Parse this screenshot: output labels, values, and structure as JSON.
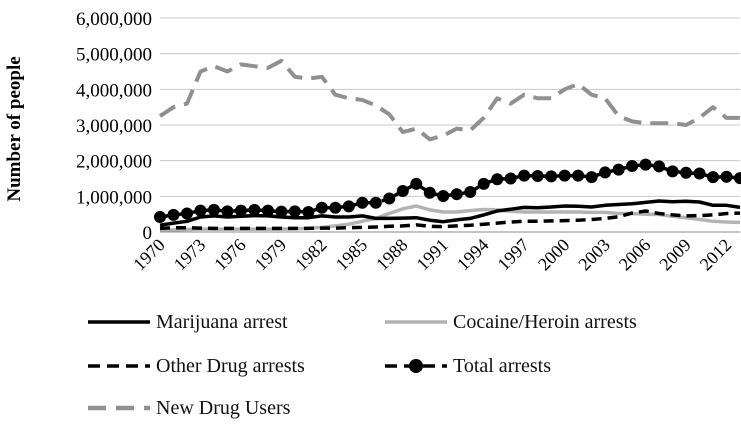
{
  "chart_data": {
    "type": "line",
    "title": "",
    "xlabel": "",
    "ylabel": "Number of people",
    "x": [
      1970,
      1971,
      1972,
      1973,
      1974,
      1975,
      1976,
      1977,
      1978,
      1979,
      1980,
      1981,
      1982,
      1983,
      1984,
      1985,
      1986,
      1987,
      1988,
      1989,
      1990,
      1991,
      1992,
      1993,
      1994,
      1995,
      1996,
      1997,
      1998,
      1999,
      2000,
      2001,
      2002,
      2003,
      2004,
      2005,
      2006,
      2007,
      2008,
      2009,
      2010,
      2011,
      2012,
      2013
    ],
    "x_tick_labels": [
      "1970",
      "1973",
      "1976",
      "1979",
      "1982",
      "1985",
      "1988",
      "1991",
      "1994",
      "1997",
      "2000",
      "2003",
      "2006",
      "2009",
      "2012"
    ],
    "ylim": [
      0,
      6000000
    ],
    "y_tick_labels": [
      "0",
      "1,000,000",
      "2,000,000",
      "3,000,000",
      "4,000,000",
      "5,000,000",
      "6,000,000"
    ],
    "grid": "horizontal",
    "legend_position": "bottom",
    "series": [
      {
        "name": "Marijuana arrest",
        "color": "#000000",
        "style": "solid",
        "values": [
          190000,
          250000,
          300000,
          420000,
          450000,
          420000,
          440000,
          460000,
          450000,
          420000,
          400000,
          400000,
          450000,
          420000,
          420000,
          450000,
          380000,
          380000,
          390000,
          400000,
          330000,
          290000,
          340000,
          380000,
          480000,
          590000,
          640000,
          690000,
          680000,
          700000,
          730000,
          720000,
          700000,
          750000,
          770000,
          790000,
          830000,
          870000,
          850000,
          860000,
          840000,
          750000,
          750000,
          690000
        ]
      },
      {
        "name": "Cocaine/Heroin arrests",
        "color": "#b3b3b3",
        "style": "solid",
        "values": [
          50000,
          60000,
          70000,
          80000,
          80000,
          80000,
          80000,
          80000,
          80000,
          80000,
          90000,
          100000,
          130000,
          170000,
          220000,
          300000,
          380000,
          520000,
          650000,
          730000,
          620000,
          560000,
          560000,
          600000,
          630000,
          620000,
          580000,
          560000,
          560000,
          560000,
          560000,
          560000,
          550000,
          550000,
          520000,
          520000,
          500000,
          490000,
          440000,
          400000,
          350000,
          300000,
          280000,
          270000
        ]
      },
      {
        "name": "Other Drug arrests",
        "color": "#000000",
        "style": "dashed",
        "values": [
          100000,
          120000,
          120000,
          110000,
          100000,
          100000,
          100000,
          100000,
          100000,
          100000,
          100000,
          100000,
          110000,
          110000,
          120000,
          130000,
          140000,
          160000,
          170000,
          200000,
          160000,
          150000,
          170000,
          190000,
          220000,
          250000,
          280000,
          300000,
          300000,
          310000,
          320000,
          330000,
          350000,
          380000,
          430000,
          530000,
          590000,
          520000,
          480000,
          450000,
          460000,
          480000,
          520000,
          530000
        ]
      },
      {
        "name": "Total arrests",
        "color": "#000000",
        "style": "dashed-dot",
        "values": [
          420000,
          480000,
          520000,
          600000,
          620000,
          580000,
          600000,
          620000,
          600000,
          570000,
          580000,
          560000,
          680000,
          680000,
          720000,
          820000,
          820000,
          940000,
          1150000,
          1350000,
          1100000,
          1010000,
          1060000,
          1120000,
          1350000,
          1480000,
          1500000,
          1580000,
          1570000,
          1560000,
          1580000,
          1580000,
          1540000,
          1670000,
          1750000,
          1850000,
          1890000,
          1840000,
          1700000,
          1660000,
          1640000,
          1540000,
          1550000,
          1510000
        ]
      },
      {
        "name": "New Drug Users",
        "color": "#909090",
        "style": "long-dashed",
        "values": [
          3250000,
          3500000,
          3600000,
          4500000,
          4650000,
          4500000,
          4700000,
          4650000,
          4600000,
          4800000,
          4350000,
          4300000,
          4350000,
          3850000,
          3750000,
          3700000,
          3550000,
          3300000,
          2800000,
          2900000,
          2600000,
          2700000,
          2900000,
          2850000,
          3200000,
          3750000,
          3600000,
          3850000,
          3750000,
          3750000,
          4000000,
          4150000,
          3850000,
          3750000,
          3250000,
          3100000,
          3050000,
          3050000,
          3050000,
          3000000,
          3200000,
          3500000,
          3200000,
          3200000
        ]
      }
    ]
  }
}
